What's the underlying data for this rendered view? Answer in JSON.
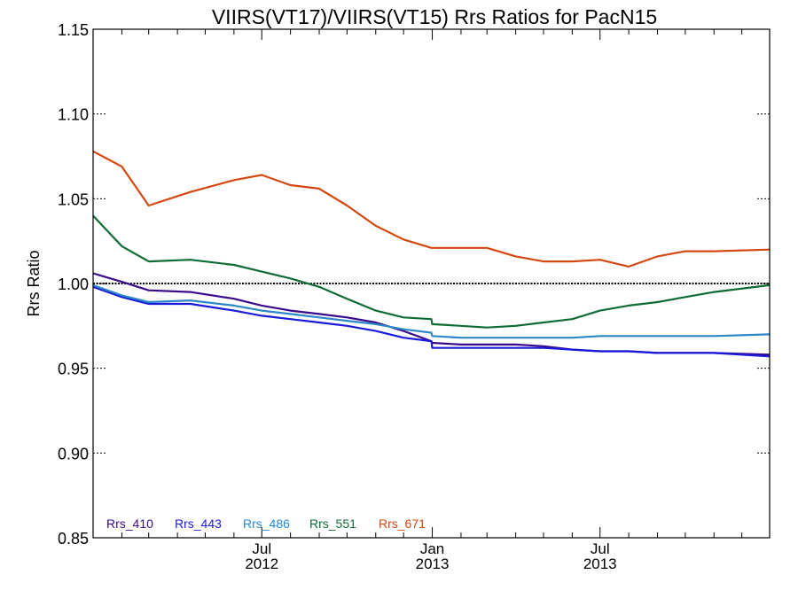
{
  "chart_data": {
    "type": "line",
    "title": "VIIRS(VT17)/VIIRS(VT15)  Rrs Ratios for PacN15",
    "xlabel": "",
    "ylabel": "Rrs Ratio",
    "ylim": [
      0.85,
      1.15
    ],
    "xlim": [
      "2012-01-01",
      "2013-12-31"
    ],
    "yticks": [
      "0.85",
      "0.90",
      "0.95",
      "1.00",
      "1.05",
      "1.10",
      "1.15"
    ],
    "xticks": [
      {
        "month": "Jul",
        "year": "2012",
        "date": "2012-07-01"
      },
      {
        "month": "Jan",
        "year": "2013",
        "date": "2013-01-01"
      },
      {
        "month": "Jul",
        "year": "2013",
        "date": "2013-07-01"
      }
    ],
    "x_minor_ticks": [
      "2012-02-01",
      "2012-03-01",
      "2012-04-01",
      "2012-05-01",
      "2012-06-01",
      "2012-08-01",
      "2012-09-01",
      "2012-10-01",
      "2012-11-01",
      "2012-12-01",
      "2013-02-01",
      "2013-03-01",
      "2013-04-01",
      "2013-05-01",
      "2013-06-01",
      "2013-08-01",
      "2013-09-01",
      "2013-10-01",
      "2013-11-01",
      "2013-12-01"
    ],
    "reference_line": 1.0,
    "legend_placement": "bottom-left",
    "x": [
      "2012-01-01",
      "2012-02-01",
      "2012-03-01",
      "2012-04-15",
      "2012-06-01",
      "2012-07-01",
      "2012-08-01",
      "2012-09-01",
      "2012-10-01",
      "2012-11-01",
      "2012-12-01",
      "2012-12-31",
      "2013-01-01",
      "2013-02-01",
      "2013-03-01",
      "2013-04-01",
      "2013-05-01",
      "2013-06-01",
      "2013-07-01",
      "2013-08-01",
      "2013-09-01",
      "2013-10-01",
      "2013-11-01",
      "2013-12-31"
    ],
    "series": [
      {
        "name": "Rrs_410",
        "color": "#3a0a8c",
        "values": [
          1.006,
          1.001,
          0.996,
          0.995,
          0.991,
          0.987,
          0.984,
          0.982,
          0.98,
          0.977,
          0.972,
          0.966,
          0.965,
          0.964,
          0.964,
          0.964,
          0.963,
          0.961,
          0.96,
          0.96,
          0.959,
          0.959,
          0.959,
          0.958
        ]
      },
      {
        "name": "Rrs_443",
        "color": "#1a1adc",
        "values": [
          0.998,
          0.992,
          0.988,
          0.988,
          0.984,
          0.981,
          0.979,
          0.977,
          0.975,
          0.972,
          0.968,
          0.966,
          0.962,
          0.962,
          0.962,
          0.962,
          0.962,
          0.961,
          0.96,
          0.96,
          0.959,
          0.959,
          0.959,
          0.957
        ]
      },
      {
        "name": "Rrs_486",
        "color": "#2b87c8",
        "values": [
          0.999,
          0.993,
          0.989,
          0.99,
          0.987,
          0.984,
          0.982,
          0.98,
          0.978,
          0.976,
          0.973,
          0.971,
          0.969,
          0.968,
          0.968,
          0.968,
          0.968,
          0.968,
          0.969,
          0.969,
          0.969,
          0.969,
          0.969,
          0.97
        ]
      },
      {
        "name": "Rrs_551",
        "color": "#0e6b35",
        "values": [
          1.04,
          1.022,
          1.013,
          1.014,
          1.011,
          1.007,
          1.003,
          0.998,
          0.991,
          0.984,
          0.98,
          0.979,
          0.976,
          0.975,
          0.974,
          0.975,
          0.977,
          0.979,
          0.984,
          0.987,
          0.989,
          0.992,
          0.995,
          0.999
        ]
      },
      {
        "name": "Rrs_671",
        "color": "#d4480f",
        "values": [
          1.078,
          1.069,
          1.046,
          1.054,
          1.061,
          1.064,
          1.058,
          1.056,
          1.046,
          1.034,
          1.026,
          1.021,
          1.021,
          1.021,
          1.021,
          1.016,
          1.013,
          1.013,
          1.014,
          1.01,
          1.016,
          1.019,
          1.019,
          1.02
        ]
      }
    ]
  }
}
